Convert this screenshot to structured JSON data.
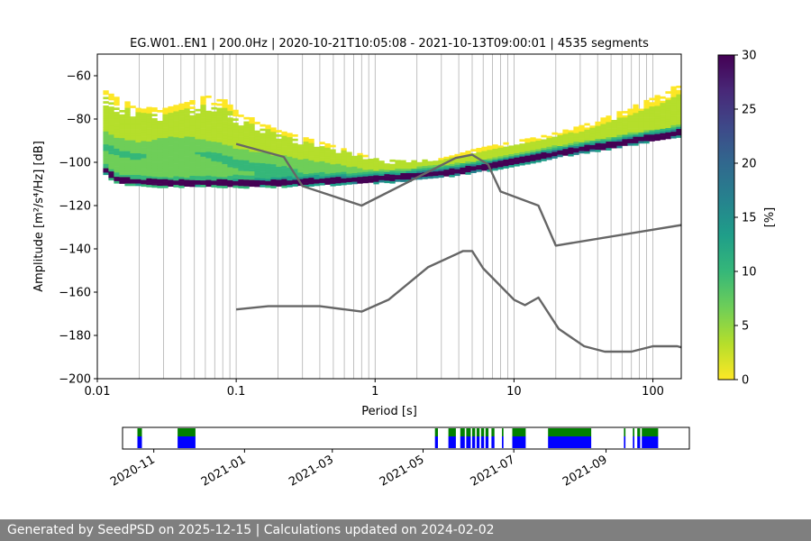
{
  "footer": {
    "text": "Generated by SeedPSD on 2025-12-15 | Calculations updated on 2024-02-02"
  },
  "chart_data": [
    {
      "type": "heatmap",
      "title": "EG.W01..EN1 | 200.0Hz | 2020-10-21T10:05:08 - 2021-10-13T09:00:01 | 4535 segments",
      "xlabel": "Period [s]",
      "ylabel": "Amplitude [m²/s⁴/Hz] [dB]",
      "x_scale": "log",
      "xlim": [
        0.01,
        160
      ],
      "ylim": [
        -200,
        -50
      ],
      "x_ticks": [
        {
          "value": 0.01,
          "label": "0.01"
        },
        {
          "value": 0.1,
          "label": "0.1"
        },
        {
          "value": 1,
          "label": "1"
        },
        {
          "value": 10,
          "label": "10"
        },
        {
          "value": 100,
          "label": "100"
        }
      ],
      "y_ticks": [
        -60,
        -80,
        -100,
        -120,
        -140,
        -160,
        -180,
        -200
      ],
      "grid": "vertical lines at log minor periods",
      "colorbar": {
        "label": "[%]",
        "range": [
          0,
          30
        ],
        "ticks": [
          0,
          5,
          10,
          15,
          20,
          25,
          30
        ],
        "colormap": "viridis_r",
        "colors": [
          "#fde725",
          "#b5de2b",
          "#6ece58",
          "#35b779",
          "#1f9e89",
          "#26828e",
          "#31688e",
          "#3e4989",
          "#482878",
          "#440154"
        ]
      },
      "density": {
        "period": [
          0.011,
          0.014,
          0.02,
          0.03,
          0.045,
          0.06,
          0.08,
          0.1,
          0.15,
          0.2,
          0.3,
          0.5,
          0.8,
          1,
          1.5,
          2,
          3,
          4,
          5,
          7,
          10,
          15,
          20,
          30,
          50,
          70,
          100,
          130,
          160
        ],
        "mode_db": [
          -103,
          -108,
          -109,
          -109.5,
          -109.5,
          -109.5,
          -109.5,
          -109.5,
          -109.5,
          -109.5,
          -109,
          -108.5,
          -108,
          -107.5,
          -107,
          -106,
          -105,
          -104,
          -103,
          -101.5,
          -99.5,
          -97.5,
          -96,
          -94,
          -92,
          -90,
          -88.5,
          -87.5,
          -86
        ],
        "upper_db": [
          -66,
          -70,
          -74,
          -75,
          -72,
          -69,
          -70,
          -76,
          -81,
          -85,
          -88,
          -92,
          -96,
          -98,
          -99,
          -99,
          -98,
          -96,
          -94,
          -92,
          -90,
          -88,
          -86,
          -83,
          -78,
          -74,
          -70,
          -66,
          -63
        ],
        "center_db": [
          -92,
          -95,
          -97,
          -94,
          -94,
          -96,
          -98,
          -100,
          -102,
          -103,
          -104,
          -105,
          -106,
          -106,
          -106,
          -105,
          -104,
          -103,
          -101,
          -100,
          -98,
          -96,
          -94,
          -92,
          -90,
          -88,
          -86,
          -84,
          -82
        ]
      },
      "series": [
        {
          "name": "upper reference curve",
          "color": "#666666",
          "period": [
            0.1,
            0.22,
            0.3,
            0.8,
            3.8,
            5,
            6.5,
            8,
            15,
            20,
            160
          ],
          "db": [
            -91.5,
            -97.5,
            -111,
            -120,
            -98,
            -96.5,
            -101,
            -113.5,
            -120,
            -138.5,
            -129
          ]
        },
        {
          "name": "lower reference curve",
          "color": "#666666",
          "period": [
            0.1,
            0.17,
            0.4,
            0.8,
            1.25,
            2.4,
            4.3,
            5,
            6,
            10,
            12,
            15,
            21,
            32,
            45,
            70,
            100,
            150,
            160
          ],
          "db": [
            -168,
            -166.5,
            -166.5,
            -169,
            -163.5,
            -148.5,
            -141,
            -141,
            -149,
            -163.5,
            -166,
            -162.5,
            -177,
            -185,
            -187.5,
            -187.5,
            -185,
            -185,
            -185.5
          ]
        }
      ]
    },
    {
      "type": "timeline",
      "name": "data availability",
      "x_ticks": [
        "2020-11",
        "2021-01",
        "2021-03",
        "2021-05",
        "2021-07",
        "2021-09"
      ],
      "range": [
        "2020-10-11",
        "2021-10-27"
      ],
      "color_top": "#008000",
      "color_bottom": "#0000ff",
      "segments": [
        [
          "2020-10-21",
          "2020-10-24"
        ],
        [
          "2020-11-17",
          "2020-11-29"
        ],
        [
          "2021-05-09",
          "2021-05-11"
        ],
        [
          "2021-05-18",
          "2021-05-23"
        ],
        [
          "2021-05-26",
          "2021-05-29"
        ],
        [
          "2021-05-30",
          "2021-06-02"
        ],
        [
          "2021-06-03",
          "2021-06-05"
        ],
        [
          "2021-06-06",
          "2021-06-08"
        ],
        [
          "2021-06-09",
          "2021-06-11"
        ],
        [
          "2021-06-12",
          "2021-06-14"
        ],
        [
          "2021-06-16",
          "2021-06-18"
        ],
        [
          "2021-06-23",
          "2021-06-24"
        ],
        [
          "2021-06-30",
          "2021-07-09"
        ],
        [
          "2021-07-24",
          "2021-08-22"
        ],
        [
          "2021-09-13",
          "2021-09-14"
        ],
        [
          "2021-09-19",
          "2021-09-20"
        ],
        [
          "2021-09-22",
          "2021-09-24"
        ],
        [
          "2021-09-25",
          "2021-10-06"
        ]
      ]
    }
  ]
}
